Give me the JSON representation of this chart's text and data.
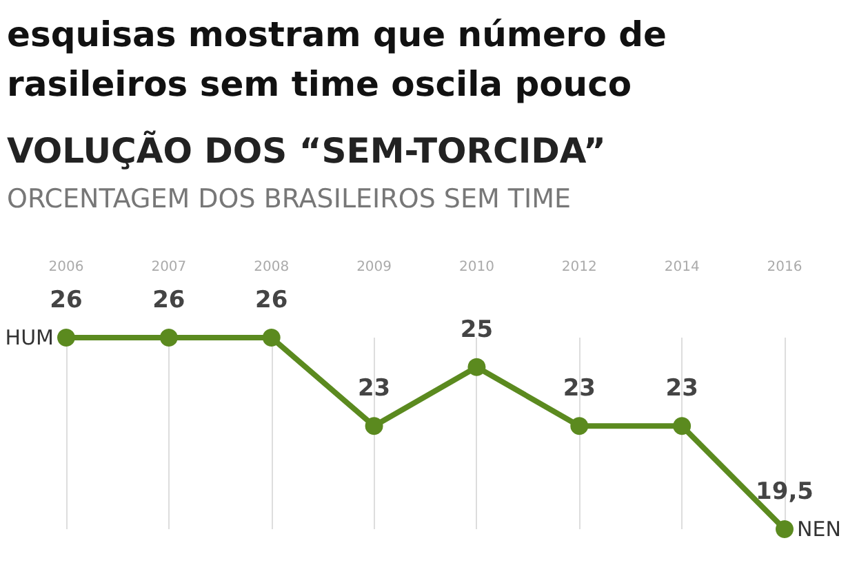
{
  "chart_data": {
    "type": "line",
    "title": "esquisas mostram que número de\nrasileiros sem time oscila pouco",
    "subtitle": "VOLUÇÃO DOS “SEM-TORCIDA”",
    "annotations": [
      "ORCENTAGEM DOS BRASILEIROS SEM TIME",
      {
        "text": "HUM",
        "x": "2006",
        "y": 26
      },
      {
        "text": "NEN",
        "x": "2016",
        "y": 19.5
      }
    ],
    "categories": [
      "2006",
      "2007",
      "2008",
      "2009",
      "2010",
      "2012",
      "2014",
      "2016"
    ],
    "series": [
      {
        "color": "#5b8a1f",
        "values": [
          26,
          26,
          26,
          23,
          25,
          23,
          23,
          19.5
        ],
        "value_labels": [
          "26",
          "26",
          "26",
          "23",
          "25",
          "23",
          "23",
          "19,5"
        ]
      }
    ],
    "grid": "x",
    "marker": "circle",
    "line_style": "solid"
  }
}
